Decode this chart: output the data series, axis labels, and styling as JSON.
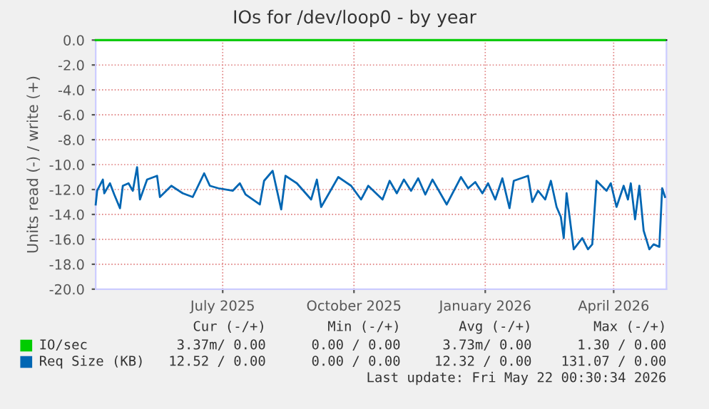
{
  "chart_data": {
    "type": "line",
    "title": "IOs for /dev/loop0 - by year",
    "ylabel": "Units read (-) / write (+)",
    "xlim": [
      "2025-04-17",
      "2026-05-22"
    ],
    "xticks": [
      {
        "value": "2025-07-15",
        "label": "July 2025"
      },
      {
        "value": "2025-10-15",
        "label": "October 2025"
      },
      {
        "value": "2026-01-15",
        "label": "January 2026"
      },
      {
        "value": "2026-04-15",
        "label": "April 2026"
      }
    ],
    "ylim": [
      -20,
      0
    ],
    "yticks": [
      {
        "value": 0,
        "label": "0.0"
      },
      {
        "value": -2,
        "label": "-2.0"
      },
      {
        "value": -4,
        "label": "-4.0"
      },
      {
        "value": -6,
        "label": "-6.0"
      },
      {
        "value": -8,
        "label": "-8.0"
      },
      {
        "value": -10,
        "label": "-10.0"
      },
      {
        "value": -12,
        "label": "-12.0"
      },
      {
        "value": -14,
        "label": "-14.0"
      },
      {
        "value": -16,
        "label": "-16.0"
      },
      {
        "value": -18,
        "label": "-18.0"
      },
      {
        "value": -20,
        "label": "-20.0"
      }
    ],
    "grid": true,
    "legend": "bottom",
    "line_style": "solid",
    "marker": "none",
    "series": [
      {
        "name": "IO/sec",
        "color": "#00cc00",
        "x": [
          "2025-04-17",
          "2026-05-21"
        ],
        "values": [
          0,
          0
        ]
      },
      {
        "name": "Req Size (KB)",
        "color": "#0066b3",
        "x": [
          "2025-04-17",
          "2025-04-18",
          "2025-04-22",
          "2025-04-23",
          "2025-04-27",
          "2025-04-30",
          "2025-05-04",
          "2025-05-06",
          "2025-05-10",
          "2025-05-13",
          "2025-05-16",
          "2025-05-18",
          "2025-05-23",
          "2025-05-30",
          "2025-06-01",
          "2025-06-09",
          "2025-06-17",
          "2025-06-24",
          "2025-07-02",
          "2025-07-06",
          "2025-07-12",
          "2025-07-22",
          "2025-07-27",
          "2025-07-31",
          "2025-08-10",
          "2025-08-13",
          "2025-08-19",
          "2025-08-25",
          "2025-08-28",
          "2025-09-05",
          "2025-09-15",
          "2025-09-19",
          "2025-09-22",
          "2025-10-04",
          "2025-10-13",
          "2025-10-20",
          "2025-10-25",
          "2025-11-04",
          "2025-11-09",
          "2025-11-14",
          "2025-11-19",
          "2025-11-24",
          "2025-11-29",
          "2025-12-04",
          "2025-12-09",
          "2025-12-19",
          "2025-12-29",
          "2026-01-03",
          "2026-01-08",
          "2026-01-13",
          "2026-01-17",
          "2026-01-22",
          "2026-01-27",
          "2026-02-01",
          "2026-02-04",
          "2026-02-14",
          "2026-02-17",
          "2026-02-21",
          "2026-02-26",
          "2026-03-02",
          "2026-03-06",
          "2026-03-09",
          "2026-03-11",
          "2026-03-13",
          "2026-03-18",
          "2026-03-24",
          "2026-03-28",
          "2026-03-31",
          "2026-04-03",
          "2026-04-10",
          "2026-04-13",
          "2026-04-17",
          "2026-04-22",
          "2026-04-25",
          "2026-04-27",
          "2026-04-30",
          "2026-05-03",
          "2026-05-06",
          "2026-05-10",
          "2026-05-13",
          "2026-05-17",
          "2026-05-19",
          "2026-05-21"
        ],
        "values": [
          -13.2,
          -12.1,
          -11.2,
          -12.3,
          -11.5,
          -12.4,
          -13.5,
          -11.7,
          -11.5,
          -12.1,
          -10.2,
          -12.8,
          -11.2,
          -10.9,
          -12.6,
          -11.7,
          -12.3,
          -12.6,
          -10.7,
          -11.7,
          -11.9,
          -12.1,
          -11.5,
          -12.4,
          -13.2,
          -11.3,
          -10.5,
          -13.6,
          -10.9,
          -11.5,
          -12.8,
          -11.2,
          -13.4,
          -11.0,
          -11.7,
          -12.8,
          -11.7,
          -12.8,
          -11.3,
          -12.3,
          -11.2,
          -12.1,
          -11.1,
          -12.4,
          -11.2,
          -13.2,
          -11.0,
          -11.9,
          -11.4,
          -12.3,
          -11.5,
          -12.8,
          -11.1,
          -13.5,
          -11.3,
          -10.9,
          -13.0,
          -12.1,
          -12.8,
          -11.3,
          -13.4,
          -14.2,
          -15.9,
          -12.3,
          -16.8,
          -15.9,
          -16.8,
          -16.4,
          -11.3,
          -12.1,
          -11.5,
          -13.4,
          -11.7,
          -12.8,
          -11.5,
          -14.4,
          -11.7,
          -15.3,
          -16.8,
          -16.4,
          -16.6,
          -11.9,
          -12.6
        ]
      }
    ],
    "annotations": [
      "Cur (-/+)",
      "Min (-/+)",
      "Avg (-/+)",
      "Max (-/+)",
      "3.37m/ 0.00",
      "0.00 / 0.00",
      "3.73m/ 0.00",
      "1.30 / 0.00",
      "12.52 / 0.00",
      "0.00 / 0.00",
      "12.32 / 0.00",
      "131.07 / 0.00",
      "Last update: Fri May 22 00:30:34 2026"
    ]
  }
}
